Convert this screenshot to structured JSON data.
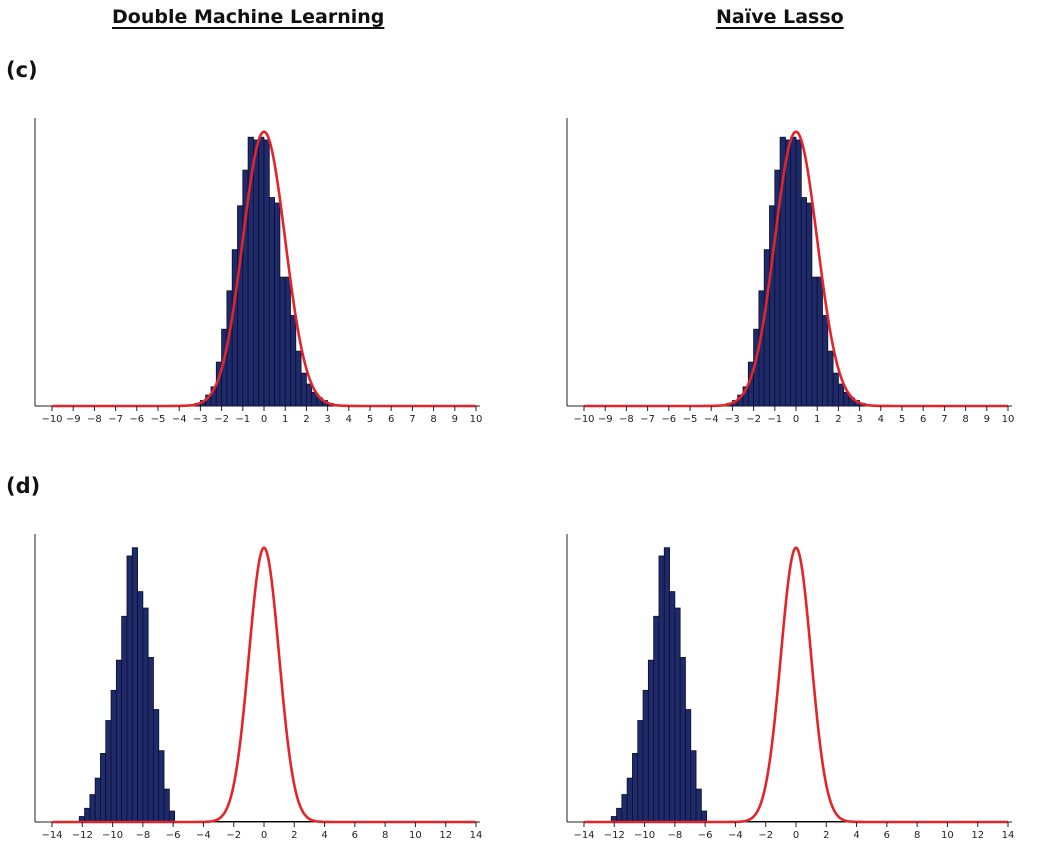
{
  "headers": {
    "left": "Double Machine Learning",
    "right": "Naïve Lasso"
  },
  "panels": [
    {
      "label": "(c)"
    },
    {
      "label": "(d)"
    }
  ],
  "colors": {
    "bar_fill": "#1f2a6b",
    "bar_edge": "#0a0f2e",
    "curve": "#e3252a",
    "axis": "#222222"
  },
  "chart_data": [
    {
      "type": "bar",
      "panel": "(c)",
      "column": "Double Machine Learning",
      "xlim": [
        -10,
        10
      ],
      "xticks": [
        -10,
        -9,
        -8,
        -7,
        -6,
        -5,
        -4,
        -3,
        -2,
        -1,
        0,
        1,
        2,
        3,
        4,
        5,
        6,
        7,
        8,
        9,
        10
      ],
      "bin_width": 0.25,
      "bins": [
        -3.25,
        -3.0,
        -2.75,
        -2.5,
        -2.25,
        -2.0,
        -1.75,
        -1.5,
        -1.25,
        -1.0,
        -0.75,
        -0.5,
        -0.25,
        0.0,
        0.25,
        0.5,
        0.75,
        1.0,
        1.25,
        1.5,
        1.75,
        2.0,
        2.25,
        2.5,
        2.75,
        3.0
      ],
      "heights": [
        0.01,
        0.02,
        0.04,
        0.07,
        0.16,
        0.28,
        0.42,
        0.57,
        0.73,
        0.86,
        0.98,
        0.97,
        0.98,
        0.97,
        0.76,
        0.74,
        0.47,
        0.47,
        0.33,
        0.2,
        0.12,
        0.08,
        0.05,
        0.03,
        0.02,
        0.01
      ],
      "overlay": {
        "type": "normal-density",
        "mean": 0,
        "sd": 1
      },
      "ylim": [
        0,
        1.05
      ]
    },
    {
      "type": "bar",
      "panel": "(c)",
      "column": "Naïve Lasso",
      "xlim": [
        -10,
        10
      ],
      "xticks": [
        -10,
        -9,
        -8,
        -7,
        -6,
        -5,
        -4,
        -3,
        -2,
        -1,
        0,
        1,
        2,
        3,
        4,
        5,
        6,
        7,
        8,
        9,
        10
      ],
      "bin_width": 0.25,
      "bins": [
        -3.25,
        -3.0,
        -2.75,
        -2.5,
        -2.25,
        -2.0,
        -1.75,
        -1.5,
        -1.25,
        -1.0,
        -0.75,
        -0.5,
        -0.25,
        0.0,
        0.25,
        0.5,
        0.75,
        1.0,
        1.25,
        1.5,
        1.75,
        2.0,
        2.25,
        2.5,
        2.75,
        3.0
      ],
      "heights": [
        0.01,
        0.02,
        0.04,
        0.07,
        0.16,
        0.28,
        0.42,
        0.57,
        0.73,
        0.86,
        0.98,
        0.97,
        0.98,
        0.97,
        0.76,
        0.74,
        0.47,
        0.47,
        0.33,
        0.2,
        0.12,
        0.08,
        0.05,
        0.03,
        0.02,
        0.01
      ],
      "overlay": {
        "type": "normal-density",
        "mean": 0,
        "sd": 1
      },
      "ylim": [
        0,
        1.05
      ]
    },
    {
      "type": "bar",
      "panel": "(d)",
      "column": "Double Machine Learning",
      "xlim": [
        -14,
        14
      ],
      "xticks": [
        -14,
        -12,
        -10,
        -8,
        -6,
        -4,
        -2,
        0,
        2,
        4,
        6,
        8,
        10,
        12,
        14
      ],
      "bin_width": 0.35,
      "bins": [
        -12.2,
        -11.85,
        -11.5,
        -11.15,
        -10.8,
        -10.45,
        -10.1,
        -9.75,
        -9.4,
        -9.05,
        -8.7,
        -8.35,
        -8.0,
        -7.65,
        -7.3,
        -6.95,
        -6.6,
        -6.25
      ],
      "heights": [
        0.02,
        0.05,
        0.1,
        0.16,
        0.25,
        0.37,
        0.48,
        0.59,
        0.75,
        0.97,
        1.0,
        0.84,
        0.78,
        0.6,
        0.41,
        0.26,
        0.12,
        0.04
      ],
      "overlay": {
        "type": "normal-density",
        "mean": 0,
        "sd": 1
      },
      "ylim": [
        0,
        1.05
      ]
    },
    {
      "type": "bar",
      "panel": "(d)",
      "column": "Naïve Lasso",
      "xlim": [
        -14,
        14
      ],
      "xticks": [
        -14,
        -12,
        -10,
        -8,
        -6,
        -4,
        -2,
        0,
        2,
        4,
        6,
        8,
        10,
        12,
        14
      ],
      "bin_width": 0.35,
      "bins": [
        -12.2,
        -11.85,
        -11.5,
        -11.15,
        -10.8,
        -10.45,
        -10.1,
        -9.75,
        -9.4,
        -9.05,
        -8.7,
        -8.35,
        -8.0,
        -7.65,
        -7.3,
        -6.95,
        -6.6,
        -6.25
      ],
      "heights": [
        0.02,
        0.05,
        0.1,
        0.16,
        0.25,
        0.37,
        0.48,
        0.59,
        0.75,
        0.97,
        1.0,
        0.84,
        0.78,
        0.6,
        0.41,
        0.26,
        0.12,
        0.04
      ],
      "overlay": {
        "type": "normal-density",
        "mean": 0,
        "sd": 1
      },
      "ylim": [
        0,
        1.05
      ]
    }
  ]
}
